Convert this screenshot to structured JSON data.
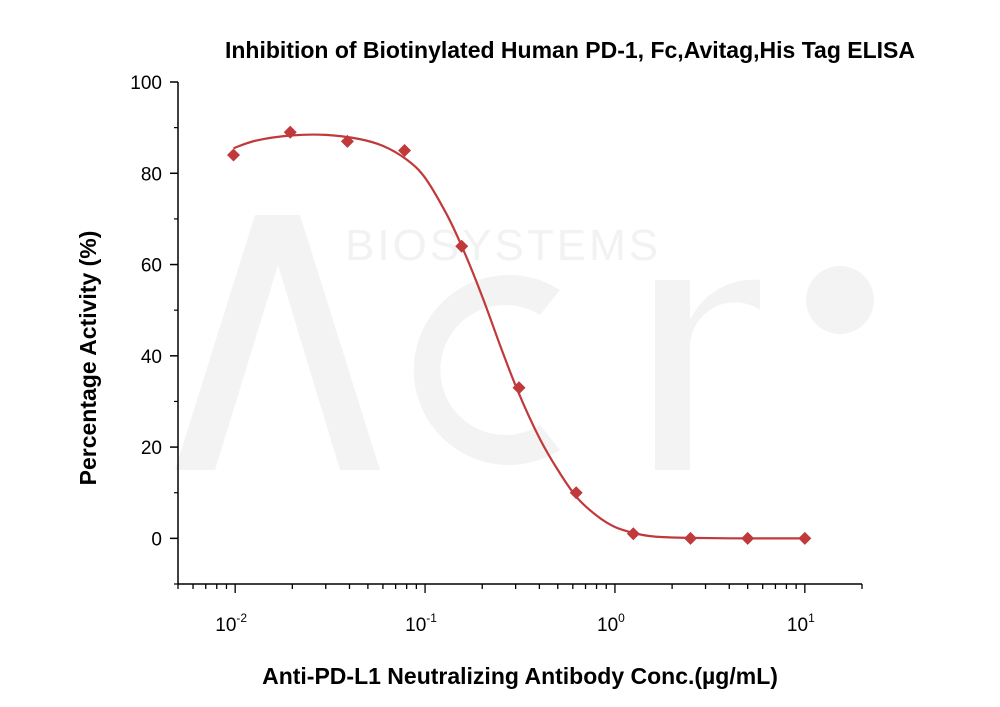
{
  "chart_data": {
    "type": "scatter",
    "title": "Inhibition of Biotinylated Human PD-1, Fc,Avitag,His Tag ELISA",
    "xlabel": "Anti-PD-L1 Neutralizing Antibody Conc.(µg/mL)",
    "ylabel": "Percentage Activity (%)",
    "x_scale": "log10",
    "xlim": [
      0.005,
      20
    ],
    "ylim": [
      -10,
      100
    ],
    "x_ticks": [
      {
        "value": 0.01,
        "base": "10",
        "exp": "-2"
      },
      {
        "value": 0.1,
        "base": "10",
        "exp": "-1"
      },
      {
        "value": 1,
        "base": "10",
        "exp": "0"
      },
      {
        "value": 10,
        "base": "10",
        "exp": "1"
      }
    ],
    "y_ticks": [
      0,
      20,
      40,
      60,
      80,
      100
    ],
    "grid": false,
    "series": [
      {
        "color": "#c0393b",
        "marker": "diamond",
        "points": [
          {
            "x": 0.0098,
            "y": 84
          },
          {
            "x": 0.0195,
            "y": 89
          },
          {
            "x": 0.039,
            "y": 87
          },
          {
            "x": 0.078,
            "y": 85
          },
          {
            "x": 0.156,
            "y": 64
          },
          {
            "x": 0.3125,
            "y": 33
          },
          {
            "x": 0.625,
            "y": 10
          },
          {
            "x": 1.25,
            "y": 1
          },
          {
            "x": 2.5,
            "y": 0
          },
          {
            "x": 5,
            "y": 0
          },
          {
            "x": 10,
            "y": 0
          }
        ],
        "fit_curve": [
          {
            "x": 0.0098,
            "y": 85.5
          },
          {
            "x": 0.013,
            "y": 87.2
          },
          {
            "x": 0.02,
            "y": 88.3
          },
          {
            "x": 0.03,
            "y": 88.4
          },
          {
            "x": 0.045,
            "y": 87.5
          },
          {
            "x": 0.06,
            "y": 86
          },
          {
            "x": 0.08,
            "y": 83
          },
          {
            "x": 0.1,
            "y": 79
          },
          {
            "x": 0.13,
            "y": 71
          },
          {
            "x": 0.16,
            "y": 63
          },
          {
            "x": 0.2,
            "y": 53
          },
          {
            "x": 0.25,
            "y": 42
          },
          {
            "x": 0.31,
            "y": 32
          },
          {
            "x": 0.4,
            "y": 22
          },
          {
            "x": 0.5,
            "y": 15
          },
          {
            "x": 0.63,
            "y": 9
          },
          {
            "x": 0.8,
            "y": 5
          },
          {
            "x": 1,
            "y": 2.5
          },
          {
            "x": 1.25,
            "y": 1.2
          },
          {
            "x": 1.6,
            "y": 0.4
          },
          {
            "x": 2.5,
            "y": 0.1
          },
          {
            "x": 5,
            "y": 0
          },
          {
            "x": 10,
            "y": 0
          }
        ]
      }
    ],
    "watermark": "BIOSYSTEMS"
  }
}
